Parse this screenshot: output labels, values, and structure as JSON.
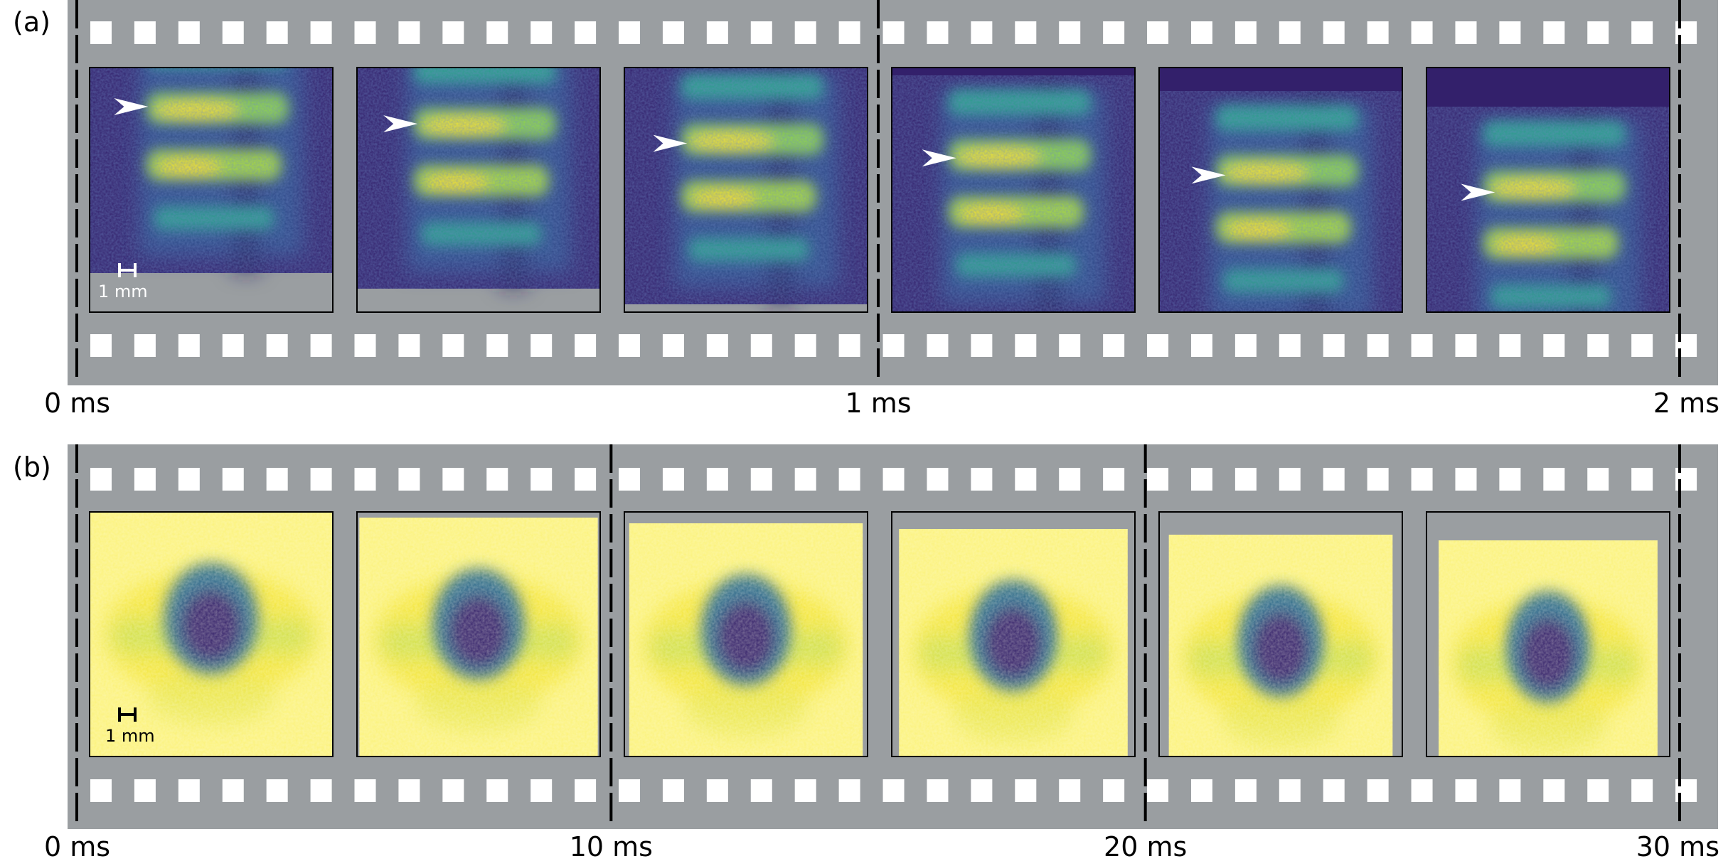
{
  "figure": {
    "panels": [
      {
        "label": "(a)",
        "frame_count": 6,
        "scale_bar_label": "1 mm",
        "scale_bar_color": "#ffffff",
        "image_style": "viridis-dark-stripes",
        "time_labels": [
          "0 ms",
          "1 ms",
          "2 ms"
        ],
        "arrowhead_color": "#ffffff",
        "frames": [
          {
            "arrow_level": 0.16
          },
          {
            "arrow_level": 0.23
          },
          {
            "arrow_level": 0.31
          },
          {
            "arrow_level": 0.37
          },
          {
            "arrow_level": 0.44
          },
          {
            "arrow_level": 0.51
          }
        ]
      },
      {
        "label": "(b)",
        "frame_count": 6,
        "scale_bar_label": "1 mm",
        "scale_bar_color": "#000000",
        "image_style": "viridis-bright-blob",
        "time_labels": [
          "0 ms",
          "10 ms",
          "20 ms",
          "30 ms"
        ],
        "frames": [
          {},
          {},
          {},
          {},
          {},
          {}
        ]
      }
    ],
    "colors": {
      "film_strip": "#9a9ea1",
      "sprocket_hole": "#ffffff",
      "time_marker": "#000000",
      "viridis_dark": "#35206a",
      "viridis_blue": "#2c5f8a",
      "viridis_teal": "#2ca089",
      "viridis_green": "#7ad151",
      "viridis_yellow": "#fde725",
      "viridis_pale": "#fefad0"
    }
  }
}
